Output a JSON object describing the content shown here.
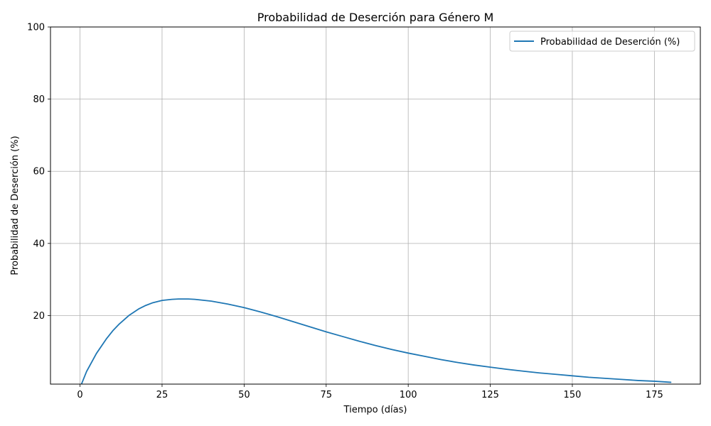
{
  "chart_data": {
    "type": "line",
    "title": "Probabilidad de Deserción para Género M",
    "xlabel": "Tiempo (días)",
    "ylabel": "Probabilidad de Deserción (%)",
    "xlim": [
      -9,
      189
    ],
    "ylim": [
      1,
      100
    ],
    "x_ticks": [
      0,
      25,
      50,
      75,
      100,
      125,
      150,
      175
    ],
    "y_ticks": [
      20,
      40,
      60,
      80,
      100
    ],
    "grid": true,
    "legend_position": "top-right",
    "colors": {
      "line": "#1f77b4",
      "grid": "#b0b0b0",
      "axis": "#000000"
    },
    "series": [
      {
        "name": "Probabilidad de Deserción (%)",
        "x": [
          0,
          2,
          5,
          8,
          10,
          12,
          15,
          18,
          20,
          22,
          25,
          28,
          30,
          33,
          35,
          38,
          40,
          45,
          50,
          55,
          60,
          65,
          70,
          75,
          80,
          85,
          90,
          95,
          100,
          105,
          110,
          115,
          120,
          125,
          130,
          135,
          140,
          145,
          150,
          155,
          160,
          165,
          170,
          175,
          180
        ],
        "y": [
          0,
          4.5,
          9.5,
          13.5,
          15.8,
          17.7,
          20.1,
          21.9,
          22.8,
          23.5,
          24.2,
          24.5,
          24.6,
          24.6,
          24.5,
          24.2,
          24.0,
          23.2,
          22.2,
          21.0,
          19.7,
          18.3,
          16.9,
          15.5,
          14.2,
          12.9,
          11.7,
          10.6,
          9.6,
          8.7,
          7.8,
          7.0,
          6.3,
          5.7,
          5.1,
          4.6,
          4.1,
          3.7,
          3.3,
          2.9,
          2.6,
          2.3,
          2.0,
          1.8,
          1.5
        ]
      }
    ]
  }
}
